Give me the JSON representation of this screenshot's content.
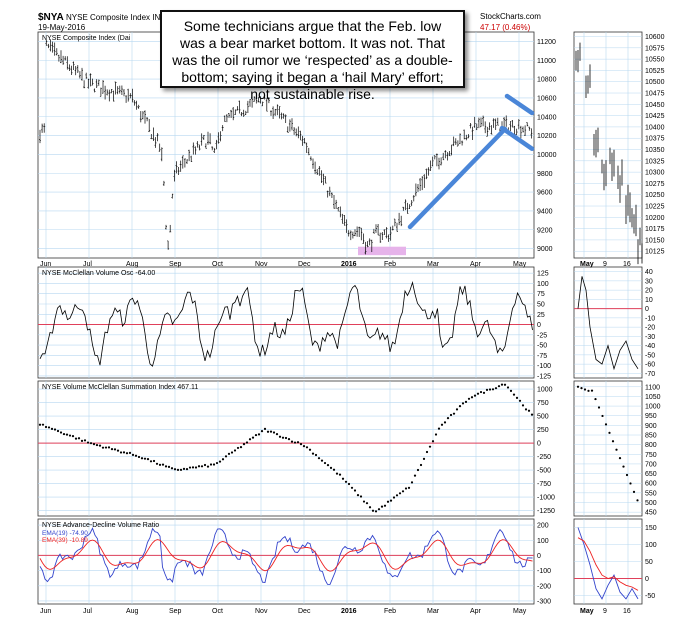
{
  "header": {
    "symbol": "$NYA",
    "name": "NYSE Composite Index",
    "exchange_cut": "IND",
    "date": "19-May-2016",
    "provider": "StockCharts.com",
    "change": "47.17 (0.46%)"
  },
  "annotation": {
    "text": "Some technicians argue that the Feb. low was a bear market bottom. It was not. That was the oil rumor we ‘respected’ as a double-bottom; saying it began a ‘hail Mary’ effort; not sustainable rise."
  },
  "chart_data": [
    {
      "type": "ohlc",
      "title": "NYSE Composite Index (Dai",
      "x_labels": [
        "Jun",
        "Jul",
        "Aug",
        "Sep",
        "Oct",
        "Nov",
        "Dec",
        "2016",
        "Feb",
        "Mar",
        "Apr",
        "May"
      ],
      "y_ticks": [
        9000,
        9200,
        9400,
        9600,
        9800,
        10000,
        10200,
        10400,
        10600,
        10800,
        11000,
        11200
      ],
      "ylim": [
        8900,
        11300
      ],
      "monthly_path": [
        {
          "label": "Jun",
          "value": 11150
        },
        {
          "label": "Jul",
          "value": 10750
        },
        {
          "label": "Aug",
          "value": 10600
        },
        {
          "label": "Sep",
          "value": 9800
        },
        {
          "label": "Oct",
          "value": 10300
        },
        {
          "label": "Nov",
          "value": 10600
        },
        {
          "label": "Dec",
          "value": 10150
        },
        {
          "label": "2016",
          "value": 9200
        },
        {
          "label": "Feb",
          "value": 9150
        },
        {
          "label": "Mar",
          "value": 9900
        },
        {
          "label": "Apr",
          "value": 10300
        },
        {
          "label": "May",
          "value": 10300
        }
      ],
      "annotations": [
        "rising trend line from Feb low",
        "falling trend lines in May",
        "Feb double-bottom highlight"
      ]
    },
    {
      "type": "line",
      "title": "NYSE McClellan Volume Osc -64.00",
      "y_ticks": [
        -125,
        -100,
        -75,
        -50,
        -25,
        0,
        25,
        50,
        75,
        100,
        125
      ],
      "ylim": [
        -130,
        140
      ],
      "reference_line": 0
    },
    {
      "type": "scatter",
      "title": "NYSE Volume McClellan Summation Index 467.11",
      "y_ticks": [
        -1250,
        -1000,
        -750,
        -500,
        -250,
        0,
        250,
        500,
        750,
        1000
      ],
      "ylim": [
        -1350,
        1150
      ],
      "reference_line": 0
    },
    {
      "type": "line",
      "title": "NYSE Advance-Decline Volume Ratio",
      "legend": [
        {
          "name": "EMA(19) -74.90",
          "color": "#3344cc"
        },
        {
          "name": "EMA(39) -10.89",
          "color": "#ee2222"
        }
      ],
      "y_ticks": [
        -300,
        -200,
        -100,
        0,
        100,
        200
      ],
      "ylim": [
        -320,
        240
      ],
      "reference_line": 0
    },
    {
      "type": "ohlc",
      "title": "inset",
      "x_labels": [
        "May",
        "9",
        "16"
      ],
      "y_ticks": [
        10125,
        10150,
        10175,
        10200,
        10225,
        10250,
        10275,
        10300,
        10325,
        10350,
        10375,
        10400,
        10425,
        10450,
        10475,
        10500,
        10525,
        10550,
        10575,
        10600
      ],
      "ylim": [
        10110,
        10610
      ]
    },
    {
      "type": "line",
      "title": "inset-osc",
      "y_ticks": [
        -70,
        -60,
        -50,
        -40,
        -30,
        -20,
        -10,
        0,
        10,
        20,
        30,
        40
      ],
      "ylim": [
        -75,
        45
      ]
    },
    {
      "type": "scatter",
      "title": "inset-summation",
      "y_ticks": [
        450,
        500,
        550,
        600,
        650,
        700,
        750,
        800,
        850,
        900,
        950,
        1000,
        1050,
        1100
      ],
      "ylim": [
        430,
        1130
      ]
    },
    {
      "type": "line",
      "title": "inset-adv",
      "y_ticks": [
        -50,
        0,
        50,
        100,
        150
      ],
      "ylim": [
        -75,
        175
      ]
    }
  ],
  "colors": {
    "grid": "#b8d8f0",
    "reference": "#e0405a",
    "trend": "#4a86d8",
    "highlight": "#e6b3ea"
  }
}
